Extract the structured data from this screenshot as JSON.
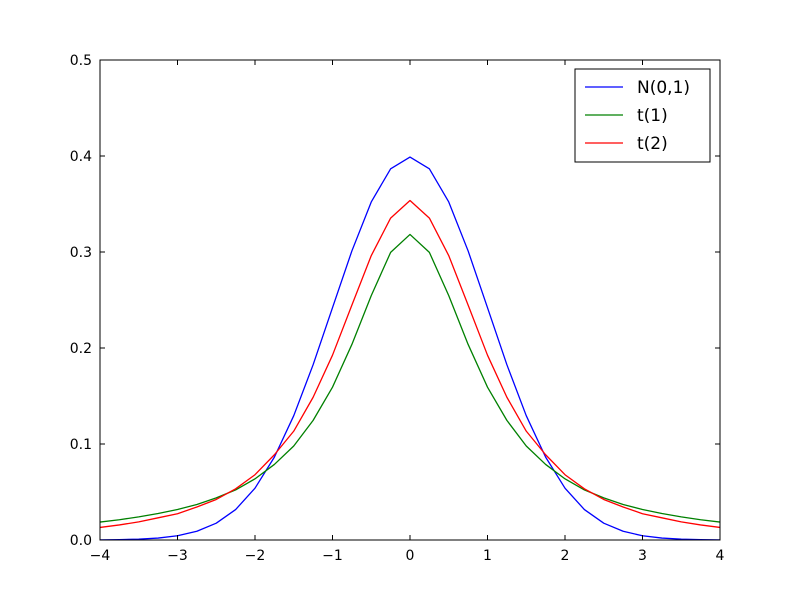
{
  "chart_data": {
    "type": "line",
    "title": "",
    "xlabel": "",
    "ylabel": "",
    "xlim": [
      -4,
      4
    ],
    "ylim": [
      0,
      0.5
    ],
    "x_ticks": [
      -4,
      -3,
      -2,
      -1,
      0,
      1,
      2,
      3,
      4
    ],
    "x_tick_labels": [
      "−4",
      "−3",
      "−2",
      "−1",
      "0",
      "1",
      "2",
      "3",
      "4"
    ],
    "y_ticks": [
      0,
      0.1,
      0.2,
      0.3,
      0.4,
      0.5
    ],
    "y_tick_labels": [
      "0.0",
      "0.1",
      "0.2",
      "0.3",
      "0.4",
      "0.5"
    ],
    "grid": false,
    "legend_position": "top-right",
    "x": [
      -4.0,
      -3.75,
      -3.5,
      -3.25,
      -3.0,
      -2.75,
      -2.5,
      -2.25,
      -2.0,
      -1.75,
      -1.5,
      -1.25,
      -1.0,
      -0.75,
      -0.5,
      -0.25,
      0.0,
      0.25,
      0.5,
      0.75,
      1.0,
      1.25,
      1.5,
      1.75,
      2.0,
      2.25,
      2.5,
      2.75,
      3.0,
      3.25,
      3.5,
      3.75,
      4.0
    ],
    "series": [
      {
        "name": "N(0,1)",
        "color": "#0000ff",
        "values": [
          0.0001,
          0.0004,
          0.0009,
          0.002,
          0.0044,
          0.0091,
          0.0175,
          0.0317,
          0.054,
          0.0863,
          0.1295,
          0.1826,
          0.242,
          0.3011,
          0.3521,
          0.3867,
          0.3989,
          0.3867,
          0.3521,
          0.3011,
          0.242,
          0.1826,
          0.1295,
          0.0863,
          0.054,
          0.0317,
          0.0175,
          0.0091,
          0.0044,
          0.002,
          0.0009,
          0.0004,
          0.0001
        ]
      },
      {
        "name": "t(1)",
        "color": "#008000",
        "values": [
          0.0187,
          0.0211,
          0.0241,
          0.0276,
          0.0318,
          0.037,
          0.0439,
          0.0522,
          0.0637,
          0.0787,
          0.0979,
          0.1246,
          0.1592,
          0.2037,
          0.2546,
          0.2996,
          0.3183,
          0.2996,
          0.2546,
          0.2037,
          0.1592,
          0.1246,
          0.0979,
          0.0787,
          0.0637,
          0.0522,
          0.0439,
          0.037,
          0.0318,
          0.0276,
          0.0241,
          0.0211,
          0.0187
        ]
      },
      {
        "name": "t(2)",
        "color": "#ff0000",
        "values": [
          0.0131,
          0.0157,
          0.0189,
          0.0231,
          0.0274,
          0.0344,
          0.0422,
          0.0533,
          0.068,
          0.0888,
          0.1134,
          0.1487,
          0.1925,
          0.2447,
          0.2962,
          0.3353,
          0.3536,
          0.3353,
          0.2962,
          0.2447,
          0.1925,
          0.1487,
          0.1134,
          0.0888,
          0.068,
          0.0533,
          0.0422,
          0.0344,
          0.0274,
          0.0231,
          0.0189,
          0.0157,
          0.0131
        ]
      }
    ]
  }
}
